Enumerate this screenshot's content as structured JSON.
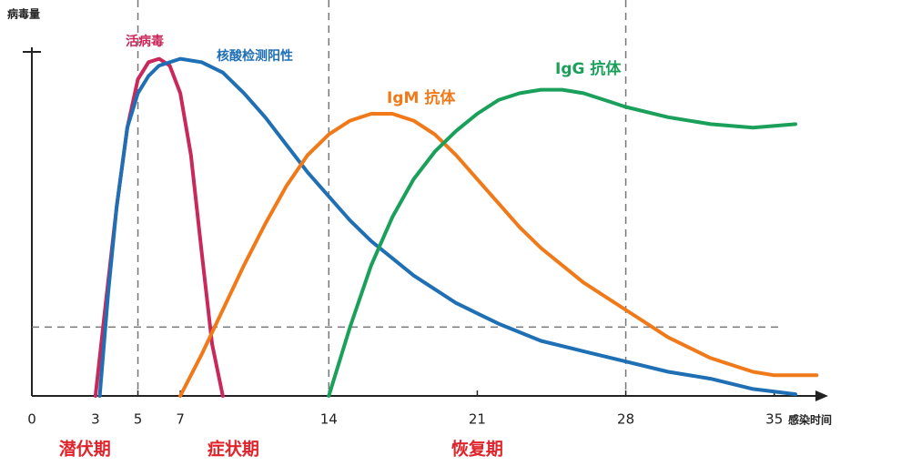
{
  "chart_data": {
    "type": "line",
    "y_label": "病毒量",
    "x_label": "感染时间",
    "xlim": [
      0,
      37.5
    ],
    "ylim": [
      0,
      100
    ],
    "xticks": [
      0,
      3,
      5,
      7,
      14,
      21,
      28,
      35
    ],
    "reference_lines": {
      "x": [
        5,
        14,
        28
      ],
      "y": 20
    },
    "phases": [
      {
        "label": "潜伏期",
        "start": 0,
        "end": 5
      },
      {
        "label": "症状期",
        "start": 5,
        "end": 14
      },
      {
        "label": "恢复期",
        "start": 14,
        "end": 28
      }
    ],
    "series": [
      {
        "name": "活病毒",
        "color": "#c8285a",
        "x": [
          3,
          3.5,
          4,
          4.5,
          5,
          5.5,
          6,
          6.5,
          7,
          7.5,
          8,
          8.5,
          9
        ],
        "values": [
          0,
          28,
          55,
          78,
          92,
          97,
          98,
          96,
          88,
          70,
          42,
          15,
          0
        ]
      },
      {
        "name": "核酸检测阳性",
        "color": "#1f6fb5",
        "x": [
          3.2,
          3.6,
          4,
          4.5,
          5,
          5.5,
          6,
          7,
          8,
          9,
          10,
          11,
          12,
          13,
          14,
          15,
          16,
          17,
          18,
          19,
          20,
          21,
          22,
          24,
          26,
          28,
          30,
          32,
          34,
          36
        ],
        "values": [
          0,
          30,
          55,
          78,
          88,
          93,
          96,
          98,
          97,
          94,
          88,
          81,
          73,
          65,
          58,
          51,
          45,
          40,
          35,
          31,
          27,
          24,
          21,
          16,
          13,
          10,
          7,
          5,
          2,
          0.5
        ]
      },
      {
        "name": "IgM 抗体",
        "color": "#f07a1a",
        "x": [
          7,
          8,
          9,
          10,
          11,
          12,
          13,
          14,
          15,
          16,
          17,
          18,
          19,
          20,
          21,
          22,
          23,
          24,
          25,
          26,
          27,
          28,
          29,
          30,
          31,
          32,
          33,
          34,
          35,
          36,
          37
        ],
        "values": [
          0,
          12,
          25,
          38,
          50,
          61,
          70,
          76,
          80,
          82,
          82,
          80,
          76,
          70,
          63,
          56,
          49,
          43,
          38,
          33,
          29,
          25,
          21,
          17,
          14,
          11,
          9,
          7,
          6,
          6,
          6
        ]
      },
      {
        "name": "IgG 抗体",
        "color": "#1aa05a",
        "x": [
          14,
          15,
          16,
          17,
          18,
          19,
          20,
          21,
          22,
          23,
          24,
          25,
          26,
          27,
          28,
          30,
          32,
          34,
          36
        ],
        "values": [
          0,
          20,
          38,
          52,
          63,
          71,
          77,
          82,
          86,
          88,
          89,
          89,
          88,
          86,
          84,
          81,
          79,
          78,
          79
        ]
      }
    ]
  }
}
